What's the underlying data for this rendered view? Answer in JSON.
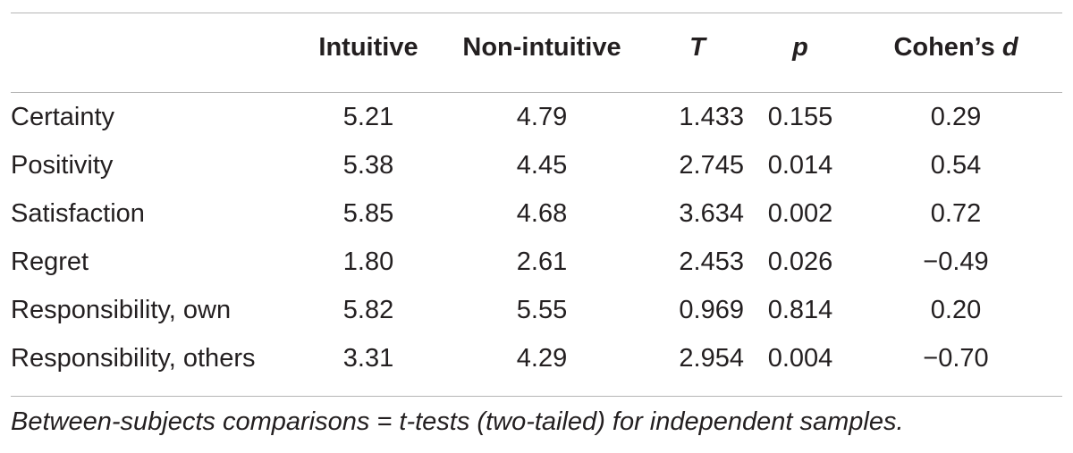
{
  "columns": {
    "intuitive": "Intuitive",
    "non_intuitive": "Non-intuitive",
    "t": "T",
    "p": "p",
    "cohens_d_prefix": "Cohen’s ",
    "cohens_d_symbol": "d"
  },
  "rows": [
    {
      "label": "Certainty",
      "intuitive": "5.21",
      "non_intuitive": "4.79",
      "t": "1.433",
      "p": "0.155",
      "d": "0.29"
    },
    {
      "label": "Positivity",
      "intuitive": "5.38",
      "non_intuitive": "4.45",
      "t": "2.745",
      "p": "0.014",
      "d": "0.54"
    },
    {
      "label": "Satisfaction",
      "intuitive": "5.85",
      "non_intuitive": "4.68",
      "t": "3.634",
      "p": "0.002",
      "d": "0.72"
    },
    {
      "label": "Regret",
      "intuitive": "1.80",
      "non_intuitive": "2.61",
      "t": "2.453",
      "p": "0.026",
      "d": "−0.49"
    },
    {
      "label": "Responsibility, own",
      "intuitive": "5.82",
      "non_intuitive": "5.55",
      "t": "0.969",
      "p": "0.814",
      "d": "0.20"
    },
    {
      "label": "Responsibility, others",
      "intuitive": "3.31",
      "non_intuitive": "4.29",
      "t": "2.954",
      "p": "0.004",
      "d": "−0.70"
    }
  ],
  "footnote": "Between-subjects comparisons = t-tests (two-tailed) for independent samples."
}
